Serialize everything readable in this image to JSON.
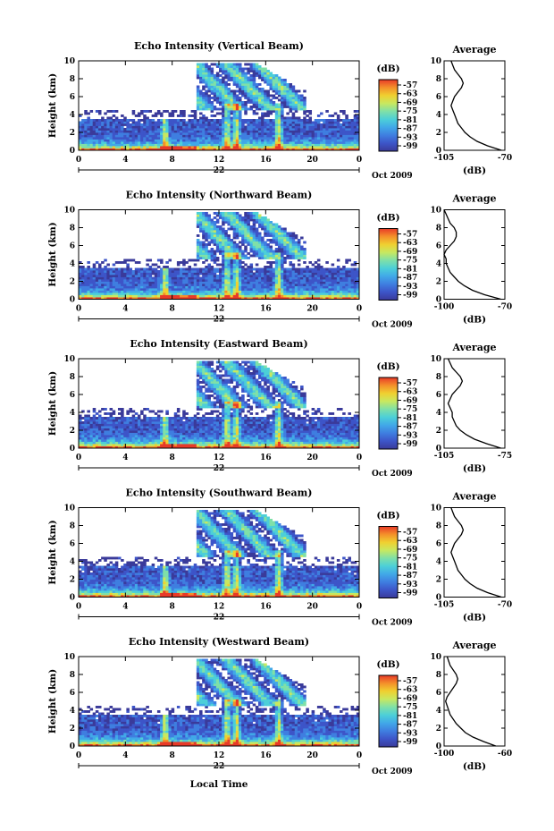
{
  "figure": {
    "xlabel": "Local Time",
    "colorbar_unit": "(dB)",
    "avg_title": "Average",
    "avg_xlabel": "(dB)"
  },
  "chart_data": [
    {
      "type": "heatmap",
      "title": "Echo Intensity (Vertical Beam)",
      "ylabel": "Height (km)",
      "ylim": [
        0,
        10
      ],
      "yticks": [
        "0",
        "2",
        "4",
        "6",
        "8",
        "10"
      ],
      "xlim": [
        0,
        24
      ],
      "xticks": [
        "0",
        "4",
        "8",
        "12",
        "16",
        "20",
        "0"
      ],
      "date_center": "22",
      "date_right": "Oct 2009",
      "colorbar_ticks": [
        "-57",
        "-63",
        "-69",
        "-75",
        "-81",
        "-87",
        "-93",
        "-99"
      ],
      "average": {
        "xlim": [
          -105,
          -70
        ],
        "xticks": [
          "-105",
          "-70"
        ],
        "yticks": [
          "0",
          "2",
          "4",
          "6",
          "8",
          "10"
        ]
      }
    },
    {
      "type": "heatmap",
      "title": "Echo Intensity (Northward Beam)",
      "ylabel": "Height (km)",
      "ylim": [
        0,
        10
      ],
      "yticks": [
        "0",
        "2",
        "4",
        "6",
        "8",
        "10"
      ],
      "xlim": [
        0,
        24
      ],
      "xticks": [
        "0",
        "4",
        "8",
        "12",
        "16",
        "20",
        "0"
      ],
      "date_center": "22",
      "date_right": "Oct 2009",
      "colorbar_ticks": [
        "-57",
        "-63",
        "-69",
        "-75",
        "-81",
        "-87",
        "-93",
        "-99"
      ],
      "average": {
        "xlim": [
          -100,
          -70
        ],
        "xticks": [
          "-100",
          "-70"
        ],
        "yticks": [
          "0",
          "2",
          "4",
          "6",
          "8",
          "10"
        ]
      }
    },
    {
      "type": "heatmap",
      "title": "Echo Intensity (Eastward Beam)",
      "ylabel": "Height (km)",
      "ylim": [
        0,
        10
      ],
      "yticks": [
        "0",
        "2",
        "4",
        "6",
        "8",
        "10"
      ],
      "xlim": [
        0,
        24
      ],
      "xticks": [
        "0",
        "4",
        "8",
        "12",
        "16",
        "20",
        "0"
      ],
      "date_center": "22",
      "date_right": "Oct 2009",
      "colorbar_ticks": [
        "-57",
        "-63",
        "-69",
        "-75",
        "-81",
        "-87",
        "-93",
        "-99"
      ],
      "average": {
        "xlim": [
          -105,
          -75
        ],
        "xticks": [
          "-105",
          "-75"
        ],
        "yticks": [
          "0",
          "2",
          "4",
          "6",
          "8",
          "10"
        ]
      }
    },
    {
      "type": "heatmap",
      "title": "Echo Intensity (Southward Beam)",
      "ylabel": "Height (km)",
      "ylim": [
        0,
        10
      ],
      "yticks": [
        "0",
        "2",
        "4",
        "6",
        "8",
        "10"
      ],
      "xlim": [
        0,
        24
      ],
      "xticks": [
        "0",
        "4",
        "8",
        "12",
        "16",
        "20",
        "0"
      ],
      "date_center": "22",
      "date_right": "Oct 2009",
      "colorbar_ticks": [
        "-57",
        "-63",
        "-69",
        "-75",
        "-81",
        "-87",
        "-93",
        "-99"
      ],
      "average": {
        "xlim": [
          -105,
          -70
        ],
        "xticks": [
          "-105",
          "-70"
        ],
        "yticks": [
          "0",
          "2",
          "4",
          "6",
          "8",
          "10"
        ]
      }
    },
    {
      "type": "heatmap",
      "title": "Echo Intensity (Westward Beam)",
      "ylabel": "Height (km)",
      "ylim": [
        0,
        10
      ],
      "yticks": [
        "0",
        "2",
        "4",
        "6",
        "8",
        "10"
      ],
      "xlim": [
        0,
        24
      ],
      "xticks": [
        "0",
        "4",
        "8",
        "12",
        "16",
        "20",
        "0"
      ],
      "date_center": "22",
      "date_right": "Oct 2009",
      "colorbar_ticks": [
        "-57",
        "-63",
        "-69",
        "-75",
        "-81",
        "-87",
        "-93",
        "-99"
      ],
      "average": {
        "xlim": [
          -100,
          -60
        ],
        "xticks": [
          "-100",
          "-60"
        ],
        "yticks": [
          "0",
          "2",
          "4",
          "6",
          "8",
          "10"
        ]
      }
    }
  ],
  "average_profile_db": [
    [
      -72,
      -80,
      -86,
      -90,
      -93,
      -95,
      -97,
      -98,
      -99,
      -100,
      -101,
      -100,
      -99,
      -97,
      -95,
      -94,
      -95,
      -97,
      -99,
      -100,
      -101
    ],
    [
      -72,
      -80,
      -86,
      -90,
      -93,
      -95,
      -97,
      -98,
      -99,
      -99,
      -100,
      -99,
      -97,
      -95,
      -94,
      -94,
      -95,
      -97,
      -98,
      -99,
      -100
    ],
    [
      -77,
      -84,
      -90,
      -94,
      -97,
      -99,
      -100,
      -101,
      -101,
      -102,
      -103,
      -102,
      -101,
      -99,
      -97,
      -96,
      -97,
      -99,
      -101,
      -102,
      -103
    ],
    [
      -72,
      -80,
      -86,
      -90,
      -93,
      -95,
      -97,
      -98,
      -99,
      -100,
      -101,
      -100,
      -99,
      -97,
      -95,
      -94,
      -95,
      -97,
      -99,
      -100,
      -101
    ],
    [
      -66,
      -74,
      -81,
      -86,
      -89,
      -92,
      -94,
      -96,
      -97,
      -98,
      -99,
      -98,
      -96,
      -94,
      -92,
      -91,
      -92,
      -94,
      -96,
      -97,
      -98
    ]
  ],
  "colors": {
    "colormap": [
      "#3a3a9a",
      "#3d55c8",
      "#3f7ee0",
      "#41a8e8",
      "#4ccfd8",
      "#7fe0a8",
      "#c8e860",
      "#f0d030",
      "#f4902a",
      "#e83a28"
    ]
  }
}
